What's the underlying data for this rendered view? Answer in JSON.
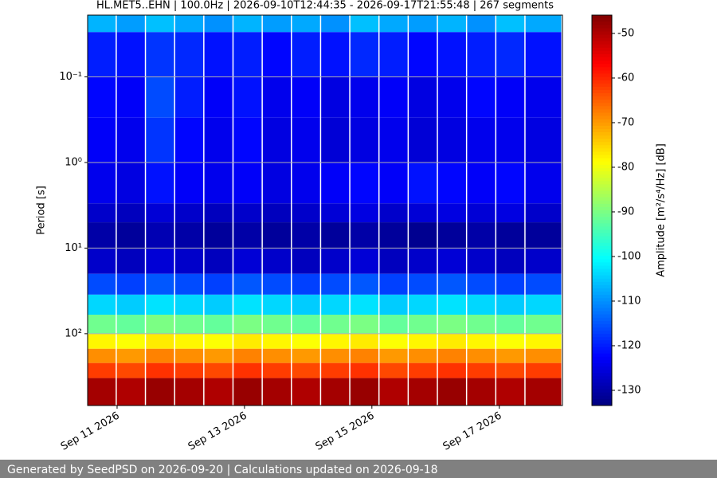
{
  "chart_data": {
    "type": "spectrogram",
    "title": "HL.MET5..EHN | 100.0Hz | 2026-09-10T12:44:35 - 2026-09-17T21:55:48 | 267 segments",
    "ylabel": "Period [s]",
    "colorbar_label": "Amplitude [m²/s⁴/Hz] [dB]",
    "footer": "Generated by SeedPSD on 2026-09-20 | Calculations updated on 2026-09-18",
    "yscale": "log",
    "y_inverted": true,
    "grid": true,
    "colormap": "jet",
    "xlim": [
      "2026-09-10T12:54",
      "2026-09-17T23:48"
    ],
    "xticks": [
      {
        "value": "2026-09-11",
        "label": "Sep 11 2026"
      },
      {
        "value": "2026-09-13",
        "label": "Sep 13 2026"
      },
      {
        "value": "2026-09-15",
        "label": "Sep 15 2026"
      },
      {
        "value": "2026-09-17",
        "label": "Sep 17 2026"
      }
    ],
    "ylim": [
      0.019,
      690
    ],
    "yticks": [
      {
        "value": 0.1,
        "label": "10⁻¹"
      },
      {
        "value": 1,
        "label": "10⁰"
      },
      {
        "value": 10,
        "label": "10¹"
      },
      {
        "value": 100,
        "label": "10²"
      }
    ],
    "clim": [
      -133.4,
      -45.9
    ],
    "cticks": [
      -50,
      -60,
      -70,
      -80,
      -90,
      -100,
      -110,
      -120,
      -130
    ],
    "xbins": [
      "2026-09-10T12:54",
      "2026-09-10T23:54",
      "2026-09-11T10:54",
      "2026-09-11T21:54",
      "2026-09-12T08:54",
      "2026-09-12T19:54",
      "2026-09-13T06:54",
      "2026-09-13T17:54",
      "2026-09-14T04:54",
      "2026-09-14T15:54",
      "2026-09-15T02:54",
      "2026-09-15T13:54",
      "2026-09-16T00:54",
      "2026-09-16T11:54",
      "2026-09-16T22:54",
      "2026-09-17T09:54",
      "2026-09-17T23:48"
    ],
    "ybins": [
      0.019,
      0.03,
      0.1,
      0.3,
      1,
      3,
      5,
      10,
      20,
      35,
      60,
      100,
      150,
      220,
      330,
      690
    ],
    "z": [
      [
        -107,
        -109,
        -106,
        -108,
        -110,
        -107,
        -109,
        -108,
        -110,
        -106,
        -108,
        -109,
        -107,
        -110,
        -106,
        -108
      ],
      [
        -120,
        -121,
        -118,
        -119,
        -121,
        -120,
        -122,
        -120,
        -121,
        -119,
        -120,
        -122,
        -121,
        -120,
        -119,
        -121
      ],
      [
        -122,
        -123,
        -116,
        -120,
        -123,
        -121,
        -124,
        -123,
        -125,
        -124,
        -123,
        -125,
        -124,
        -122,
        -123,
        -124
      ],
      [
        -123,
        -124,
        -118,
        -122,
        -124,
        -122,
        -125,
        -124,
        -126,
        -125,
        -124,
        -126,
        -125,
        -124,
        -124,
        -125
      ],
      [
        -124,
        -125,
        -121,
        -123,
        -124,
        -123,
        -125,
        -124,
        -123,
        -122,
        -123,
        -121,
        -122,
        -123,
        -122,
        -124
      ],
      [
        -127,
        -128,
        -126,
        -127,
        -128,
        -127,
        -128,
        -127,
        -126,
        -125,
        -127,
        -126,
        -125,
        -126,
        -125,
        -127
      ],
      [
        -130,
        -131,
        -129,
        -130,
        -131,
        -130,
        -131,
        -130,
        -131,
        -130,
        -131,
        -132,
        -131,
        -130,
        -131,
        -131
      ],
      [
        -127,
        -128,
        -126,
        -127,
        -128,
        -126,
        -127,
        -128,
        -127,
        -126,
        -128,
        -127,
        -126,
        -127,
        -128,
        -127
      ],
      [
        -116,
        -117,
        -115,
        -116,
        -117,
        -115,
        -116,
        -117,
        -116,
        -115,
        -117,
        -116,
        -115,
        -116,
        -117,
        -116
      ],
      [
        -104,
        -105,
        -103,
        -104,
        -105,
        -103,
        -104,
        -105,
        -104,
        -103,
        -105,
        -104,
        -103,
        -104,
        -105,
        -104
      ],
      [
        -91,
        -92,
        -90,
        -91,
        -92,
        -90,
        -91,
        -92,
        -91,
        -90,
        -92,
        -91,
        -90,
        -91,
        -92,
        -91
      ],
      [
        -78,
        -79,
        -77,
        -78,
        -79,
        -77,
        -78,
        -79,
        -78,
        -77,
        -79,
        -78,
        -77,
        -78,
        -79,
        -78
      ],
      [
        -69,
        -70,
        -68,
        -69,
        -70,
        -68,
        -69,
        -70,
        -69,
        -68,
        -70,
        -69,
        -68,
        -69,
        -70,
        -69
      ],
      [
        -62,
        -63,
        -61,
        -62,
        -63,
        -61,
        -62,
        -63,
        -62,
        -61,
        -63,
        -62,
        -61,
        -62,
        -63,
        -62
      ],
      [
        -49,
        -50,
        -48,
        -49,
        -50,
        -48,
        -49,
        -50,
        -49,
        -48,
        -50,
        -49,
        -48,
        -49,
        -50,
        -49
      ]
    ]
  }
}
